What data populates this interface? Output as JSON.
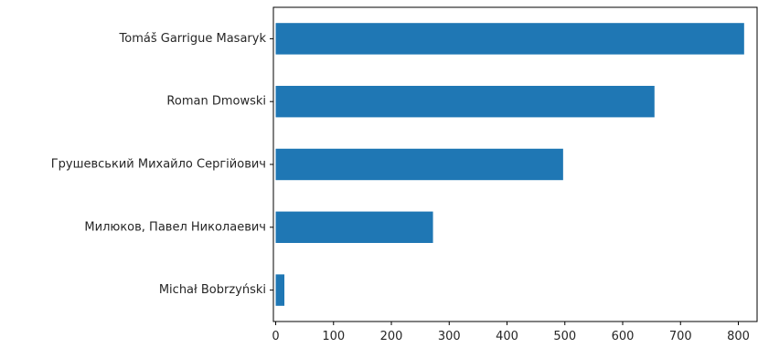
{
  "chart_data": {
    "type": "bar",
    "orientation": "horizontal",
    "categories": [
      "Tomáš Garrigue Masaryk",
      "Roman Dmowski",
      "Грушевський Михайло Сергійович",
      "Милюков, Павел Николаевич",
      "Michał Bobrzyński"
    ],
    "values": [
      810,
      655,
      497,
      272,
      15
    ],
    "xlim": [
      -4,
      834
    ],
    "xticks": [
      "0",
      "100",
      "200",
      "300",
      "400",
      "500",
      "600",
      "700",
      "800"
    ],
    "title": "",
    "xlabel": "",
    "ylabel": "",
    "grid": false,
    "bar_color": "#1f77b4"
  }
}
